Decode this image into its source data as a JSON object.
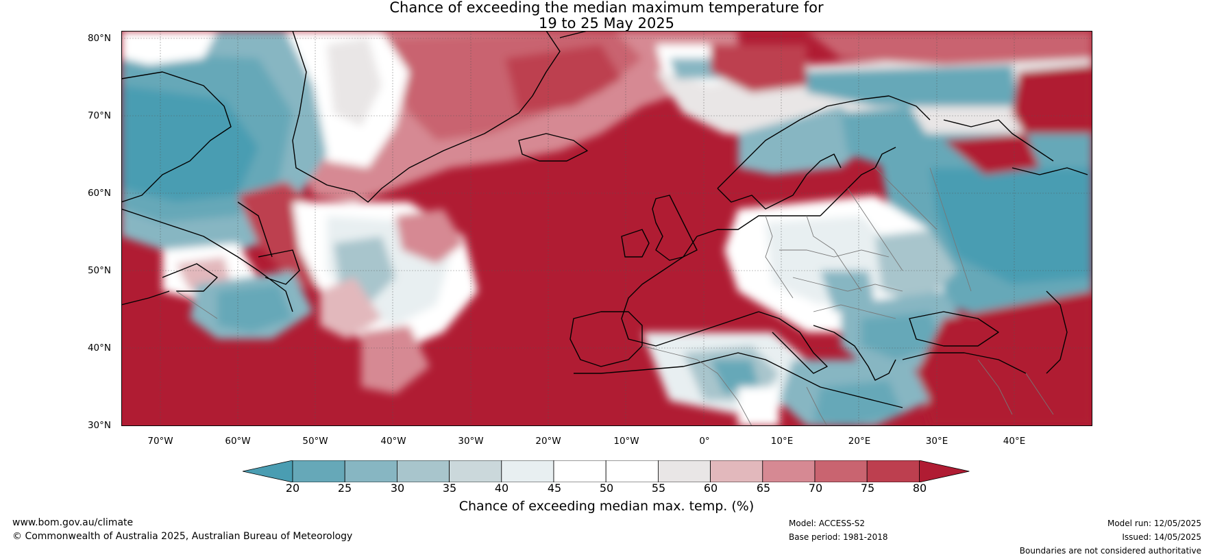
{
  "title": {
    "line1": "Chance of exceeding the median maximum temperature for",
    "line2": "19 to 25 May 2025"
  },
  "map": {
    "latitude_labels": [
      "80°N",
      "70°N",
      "60°N",
      "50°N",
      "40°N",
      "30°N"
    ],
    "longitude_labels": [
      "70°W",
      "60°W",
      "50°W",
      "40°W",
      "30°W",
      "20°W",
      "10°W",
      "0°",
      "10°E",
      "20°E",
      "30°E",
      "40°E"
    ],
    "extent": {
      "lon_min": -75,
      "lon_max": 50,
      "lat_min": 30,
      "lat_max": 81
    }
  },
  "legend": {
    "ticks": [
      "20",
      "25",
      "30",
      "35",
      "40",
      "45",
      "50",
      "55",
      "60",
      "65",
      "70",
      "75",
      "80"
    ],
    "title": "Chance of exceeding median max. temp. (%)",
    "colors": {
      "below_20": "#4a9db2",
      "20_25": "#66a8b8",
      "25_30": "#87b6c2",
      "30_35": "#a8c5cc",
      "35_40": "#cbd8db",
      "40_45": "#e8eff1",
      "45_50": "#ffffff",
      "50_55": "#ffffff",
      "55_60": "#e9e6e6",
      "60_65": "#e2b8bc",
      "65_70": "#d68993",
      "70_75": "#c96470",
      "75_80": "#bd3f4f",
      "above_80": "#b01c33"
    }
  },
  "footer": {
    "website": "www.bom.gov.au/climate",
    "copyright": "© Commonwealth of Australia 2025, Australian Bureau of Meteorology",
    "model": "Model: ACCESS-S2",
    "base_period": "Base period: 1981-2018",
    "model_run": "Model run: 12/05/2025",
    "issued": "Issued: 14/05/2025",
    "disclaimer": "Boundaries are not considered authoritative"
  }
}
